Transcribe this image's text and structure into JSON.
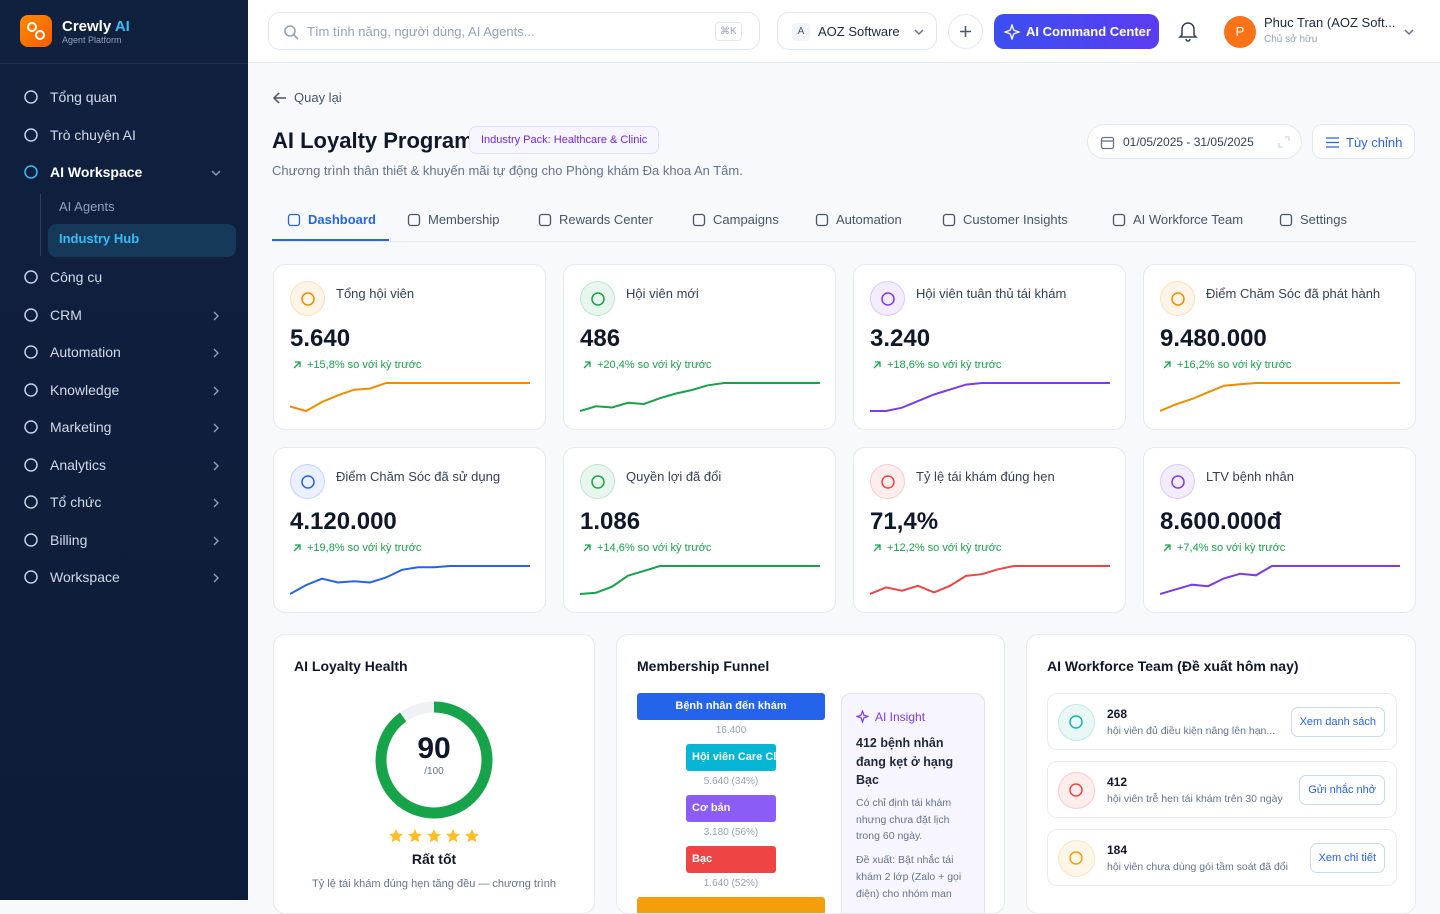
{
  "sidebar": {
    "brand": "Crewly",
    "brand_accent": "AI",
    "tagline": "Agent Platform",
    "menu": [
      "Tổng quan",
      "Trò chuyện AI",
      "AI Workspace",
      "AI Agents",
      "Industry Hub",
      "Công cụ",
      "CRM",
      "Automation",
      "Knowledge",
      "Marketing",
      "Analytics",
      "Tổ chức",
      "Billing",
      "Workspace"
    ]
  },
  "topbar": {
    "search_placeholder": "Tìm tính năng, người dùng, AI Agents...",
    "shortcut": "⌘K",
    "workspace_initial": "A",
    "workspace": "AOZ Software",
    "command": "AI Command Center",
    "user_initial": "P",
    "user_name": "Phuc Tran (AOZ Soft...",
    "user_role": "Chủ sở hữu"
  },
  "header": {
    "back": "Quay lại",
    "title": "AI Loyalty Program",
    "badge": "Industry Pack: Healthcare & Clinic",
    "subtitle": "Chương trình thân thiết & khuyến mãi tự động cho Phòng khám Đa khoa An Tâm.",
    "date_range": "01/05/2025 - 31/05/2025",
    "customize": "Tùy chỉnh"
  },
  "tabs": [
    "Dashboard",
    "Membership",
    "Rewards Center",
    "Campaigns",
    "Automation",
    "Customer Insights",
    "AI Workforce Team",
    "Settings"
  ],
  "kpis": [
    {
      "label": "Tổng hội viên",
      "value": "5.640",
      "change": "+15,8% so với kỳ trước",
      "color": "#f08c00",
      "trend": [
        5,
        1,
        9,
        15,
        20,
        21,
        26,
        26,
        26,
        26,
        26,
        26,
        26,
        26,
        26,
        26
      ]
    },
    {
      "label": "Hội viên mới",
      "value": "486",
      "change": "+20,4% so với kỳ trước",
      "color": "#16a34a",
      "trend": [
        2,
        6,
        5,
        9,
        8,
        13,
        17,
        20,
        24,
        26,
        26,
        26,
        26,
        26,
        26,
        26
      ]
    },
    {
      "label": "Hội viên tuân thủ tái khám",
      "value": "3.240",
      "change": "+18,6% so với kỳ trước",
      "color": "#7c3aed",
      "trend": [
        4,
        4,
        6,
        10,
        14,
        17,
        20,
        21,
        21,
        21,
        21,
        21,
        21,
        21,
        21,
        21
      ]
    },
    {
      "label": "Điểm Chăm Sóc đã phát hành",
      "value": "9.480.000",
      "change": "+16,2% so với kỳ trước",
      "color": "#f08c00",
      "trend": [
        3,
        8,
        12,
        17,
        22,
        23,
        24,
        24,
        24,
        24,
        24,
        24,
        24,
        24,
        24,
        24
      ]
    },
    {
      "label": "Điểm Chăm Sóc đã sử dụng",
      "value": "4.120.000",
      "change": "+19,8% so với kỳ trước",
      "color": "#2563eb",
      "trend": [
        2,
        9,
        14,
        11,
        12,
        11,
        15,
        21,
        23,
        23,
        24,
        24,
        24,
        24,
        24,
        24
      ]
    },
    {
      "label": "Quyền lợi đã đổi",
      "value": "1.086",
      "change": "+14,6% so với kỳ trước",
      "color": "#16a34a",
      "trend": [
        1,
        2,
        7,
        16,
        20,
        24,
        24,
        24,
        24,
        24,
        24,
        24,
        24,
        24,
        24,
        24
      ]
    },
    {
      "label": "Tỷ lệ tái khám đúng hẹn",
      "value": "71,4%",
      "change": "+12,2% so với kỳ trước",
      "color": "#ef4444",
      "trend": [
        3,
        7,
        5,
        8,
        4,
        8,
        14,
        15,
        18,
        20,
        20,
        20,
        20,
        20,
        20,
        20
      ]
    },
    {
      "label": "LTV bệnh nhân",
      "value": "8.600.000đ",
      "change": "+7,4% so với kỳ trước",
      "color": "#7c3aed",
      "trend": [
        2,
        5,
        8,
        7,
        12,
        15,
        14,
        20,
        20,
        20,
        20,
        20,
        20,
        20,
        20,
        20
      ]
    }
  ],
  "health": {
    "title": "AI Loyalty Health",
    "score": 90,
    "max_label": "/100",
    "rating": "Rất tốt",
    "note": "Tỷ lệ tái khám đúng hẹn tăng đều — chương trình",
    "color": "#16a34a"
  },
  "funnel": {
    "title": "Membership Funnel",
    "stages": [
      {
        "name": "Bệnh nhân đến khám",
        "value": 16400,
        "label": "16.400",
        "color": "#2563eb"
      },
      {
        "name": "Hội viên Care Clu",
        "value": 5640,
        "label": "5.640 (34%)",
        "color": "#06b6d4"
      },
      {
        "name": "Cơ bản",
        "value": 3180,
        "label": "3.180 (56%)",
        "color": "#8b5cf6"
      },
      {
        "name": "Bạc",
        "value": 1640,
        "label": "1.640 (52%)",
        "color": "#ef4444"
      }
    ],
    "insight": {
      "title": "AI Insight",
      "headline": "412 bệnh nhân đang kẹt ở hạng Bạc",
      "body": "Có chỉ định tái khám nhưng chưa đặt lịch trong 60 ngày.",
      "suggestion": "Đề xuất: Bật nhắc tái khám 2 lớp (Zalo + gọi điện) cho nhóm man"
    }
  },
  "workforce": {
    "title": "AI Workforce Team (Đề xuất hôm nay)",
    "items": [
      {
        "count": "268",
        "text": "hội viên đủ điều kiện nâng lên hạn...",
        "action": "Xem danh sách",
        "color": "#14b8a6"
      },
      {
        "count": "412",
        "text": "hội viên trễ hẹn tái khám trên 30 ngày",
        "action": "Gửi nhắc nhở",
        "color": "#ef4444"
      },
      {
        "count": "184",
        "text": "hội viên chưa dùng gói tầm soát đã đổi",
        "action": "Xem chi tiết",
        "color": "#f59e0b"
      }
    ]
  }
}
